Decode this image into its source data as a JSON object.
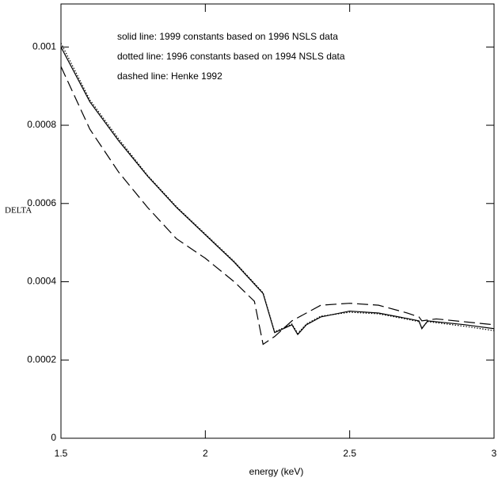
{
  "chart_data": {
    "type": "line",
    "xlabel": "energy (keV)",
    "ylabel": "DELTA",
    "xlim": [
      1.5,
      3
    ],
    "ylim": [
      0,
      0.00111
    ],
    "xticks": [
      1.5,
      2,
      2.5,
      3
    ],
    "yticks": [
      0,
      0.0002,
      0.0004,
      0.0006,
      0.0008,
      0.001
    ],
    "legend": "top-right",
    "series": [
      {
        "name": "solid line: 1999 constants based on 1996 NSLS data",
        "color": "#000000",
        "dash": "solid",
        "x": [
          1.5,
          1.6,
          1.7,
          1.8,
          1.9,
          2.0,
          2.1,
          2.2,
          2.24,
          2.27,
          2.3,
          2.32,
          2.35,
          2.4,
          2.5,
          2.6,
          2.7,
          2.74,
          2.75,
          2.77,
          2.9,
          3.0
        ],
        "values": [
          0.001,
          0.00086,
          0.00076,
          0.00067,
          0.00059,
          0.00052,
          0.00045,
          0.00037,
          0.00027,
          0.00028,
          0.00029,
          0.000265,
          0.00029,
          0.00031,
          0.000325,
          0.00032,
          0.000306,
          0.0003,
          0.00028,
          0.0003,
          0.00029,
          0.00028
        ]
      },
      {
        "name": "dotted line: 1996 constants based on 1994 NSLS data",
        "color": "#000000",
        "dash": "dotted",
        "x": [
          1.5,
          1.6,
          1.7,
          1.8,
          1.9,
          2.0,
          2.1,
          2.2,
          2.24,
          2.27,
          2.3,
          2.32,
          2.35,
          2.4,
          2.5,
          2.6,
          2.7,
          2.74,
          2.75,
          2.77,
          2.9,
          3.0
        ],
        "values": [
          0.00101,
          0.000865,
          0.000765,
          0.000672,
          0.000592,
          0.000522,
          0.000452,
          0.000372,
          0.000272,
          0.000282,
          0.000292,
          0.000268,
          0.000292,
          0.000312,
          0.000322,
          0.000318,
          0.000304,
          0.000298,
          0.000282,
          0.000298,
          0.000286,
          0.000275
        ]
      },
      {
        "name": "dashed line: Henke 1992",
        "color": "#000000",
        "dash": "dashed",
        "x": [
          1.5,
          1.6,
          1.7,
          1.8,
          1.9,
          2.0,
          2.1,
          2.17,
          2.2,
          2.24,
          2.3,
          2.35,
          2.4,
          2.5,
          2.6,
          2.7,
          2.74,
          2.75,
          2.8,
          3.0
        ],
        "values": [
          0.00095,
          0.00079,
          0.00068,
          0.00059,
          0.00051,
          0.00046,
          0.0004,
          0.00035,
          0.00024,
          0.00026,
          0.0003,
          0.00032,
          0.00034,
          0.000345,
          0.00034,
          0.00032,
          0.00031,
          0.0003,
          0.000305,
          0.00029
        ]
      }
    ]
  }
}
